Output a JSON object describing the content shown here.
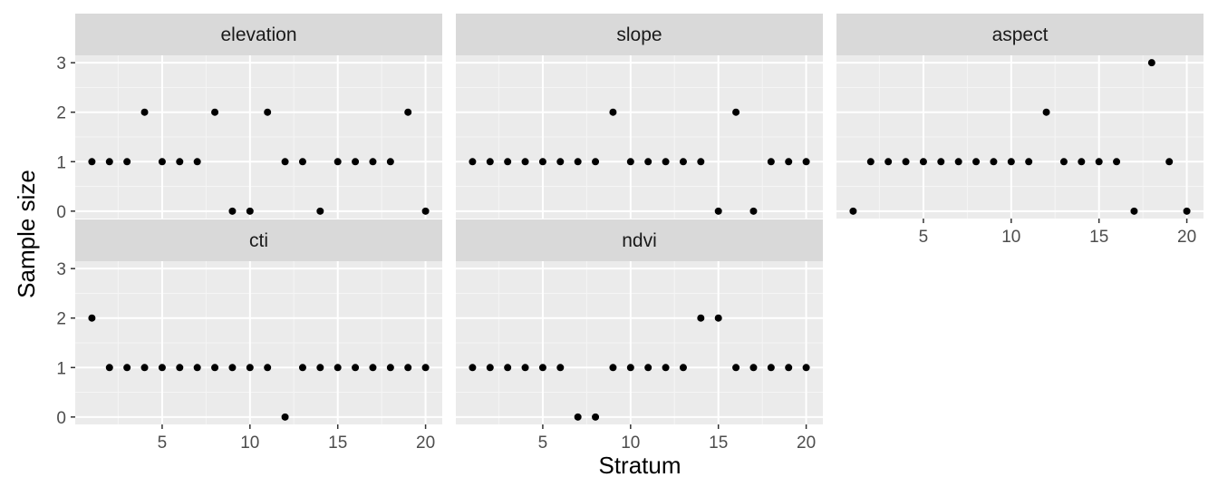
{
  "chart_data": {
    "type": "scatter",
    "xlabel": "Stratum",
    "ylabel": "Sample size",
    "xlim": [
      0.05,
      20.95
    ],
    "ylim": [
      -0.15,
      3.15
    ],
    "x_ticks": [
      5,
      10,
      15,
      20
    ],
    "y_ticks": [
      0,
      1,
      2,
      3
    ],
    "grid": true,
    "x": [
      1,
      2,
      3,
      4,
      5,
      6,
      7,
      8,
      9,
      10,
      11,
      12,
      13,
      14,
      15,
      16,
      17,
      18,
      19,
      20
    ],
    "panels": [
      {
        "name": "elevation",
        "values": [
          1,
          1,
          1,
          2,
          1,
          1,
          1,
          2,
          0,
          0,
          2,
          1,
          1,
          0,
          1,
          1,
          1,
          1,
          2,
          0
        ]
      },
      {
        "name": "slope",
        "values": [
          1,
          1,
          1,
          1,
          1,
          1,
          1,
          1,
          2,
          1,
          1,
          1,
          1,
          1,
          0,
          2,
          0,
          1,
          1,
          1
        ]
      },
      {
        "name": "aspect",
        "values": [
          0,
          1,
          1,
          1,
          1,
          1,
          1,
          1,
          1,
          1,
          1,
          2,
          1,
          1,
          1,
          1,
          0,
          3,
          1,
          0
        ]
      },
      {
        "name": "cti",
        "values": [
          2,
          1,
          1,
          1,
          1,
          1,
          1,
          1,
          1,
          1,
          1,
          0,
          1,
          1,
          1,
          1,
          1,
          1,
          1,
          1
        ]
      },
      {
        "name": "ndvi",
        "values": [
          1,
          1,
          1,
          1,
          1,
          1,
          0,
          0,
          1,
          1,
          1,
          1,
          1,
          2,
          2,
          1,
          1,
          1,
          1,
          1
        ]
      }
    ],
    "colors": {
      "panel_background": "#ebebeb",
      "strip_background": "#d9d9d9",
      "grid_major": "#ffffff",
      "grid_minor": "#f5f5f5",
      "point": "#000000"
    }
  }
}
